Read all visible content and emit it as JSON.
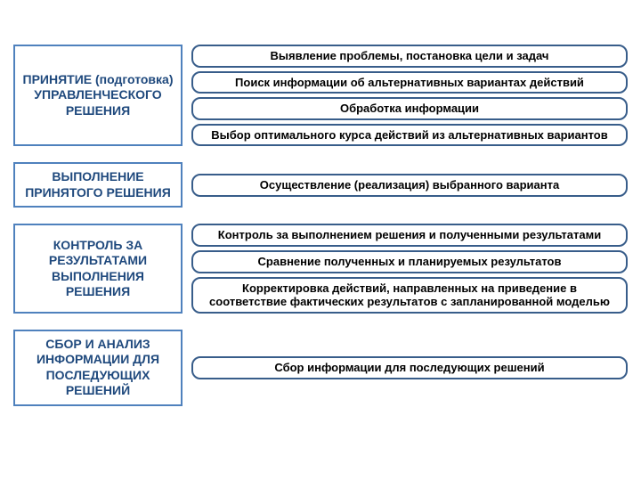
{
  "colors": {
    "stage_border": "#4f81bd",
    "stage_bg": "#ffffff",
    "stage_text": "#1f497d",
    "step_border": "#385d8a",
    "step_bg": "#ffffff",
    "step_text": "#000000"
  },
  "typography": {
    "stage_fontsize": 14,
    "step_fontsize": 13
  },
  "stages": [
    {
      "title": "ПРИНЯТИЕ (подготовка) УПРАВЛЕНЧЕСКОГО РЕШЕНИЯ",
      "steps": [
        "Выявление проблемы, постановка цели и задач",
        "Поиск информации об альтернативных вариантах действий",
        "Обработка информации",
        "Выбор оптимального курса действий из альтернативных вариантов"
      ]
    },
    {
      "title": "ВЫПОЛНЕНИЕ ПРИНЯТОГО РЕШЕНИЯ",
      "steps": [
        "Осуществление (реализация) выбранного варианта"
      ]
    },
    {
      "title": "КОНТРОЛЬ ЗА РЕЗУЛЬТАТАМИ ВЫПОЛНЕНИЯ РЕШЕНИЯ",
      "steps": [
        "Контроль за выполнением решения и полученными результатами",
        "Сравнение полученных и планируемых результатов",
        "Корректировка действий, направленных на приведение в соответствие фактических результатов с запланированной моделью"
      ]
    },
    {
      "title": "СБОР И АНАЛИЗ ИНФОРМАЦИИ ДЛЯ ПОСЛЕДУЮЩИХ РЕШЕНИЙ",
      "steps": [
        "Сбор информации для последующих решений"
      ]
    }
  ]
}
